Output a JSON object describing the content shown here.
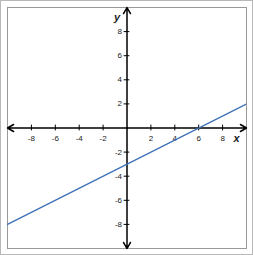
{
  "chart_data": {
    "type": "line",
    "x": [
      -10,
      10
    ],
    "values": [
      -8,
      2
    ],
    "color": "#3b6fb6",
    "x_label": "x",
    "y_label": "y",
    "xlim": [
      -10,
      10
    ],
    "ylim": [
      -10,
      10
    ],
    "xticks": [
      -8,
      -6,
      -4,
      -2,
      2,
      4,
      6,
      8
    ],
    "yticks": [
      -8,
      -6,
      -4,
      -2,
      2,
      4,
      6,
      8
    ],
    "grid": false
  }
}
